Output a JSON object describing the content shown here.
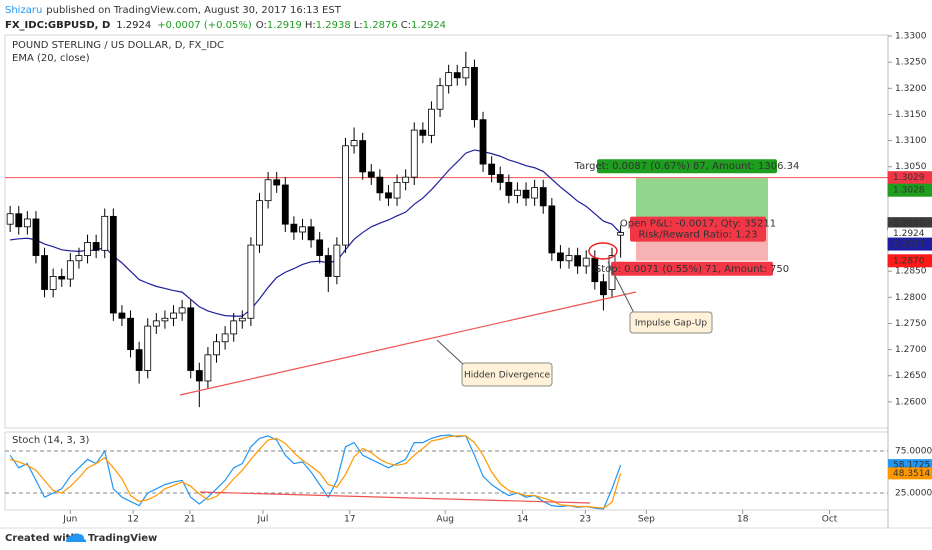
{
  "header": {
    "author": "Shizaru",
    "published": "published on TradingView.com, August 30, 2017 16:13 EST",
    "symbol": "FX_IDC:GBPUSD, D",
    "last": 1.2924,
    "change": "+0.0007 (+0.05%)",
    "ohlc": [
      {
        "label": "O:",
        "value": 1.2919
      },
      {
        "label": "H:",
        "value": 1.2938
      },
      {
        "label": "L:",
        "value": 1.2876
      },
      {
        "label": "C:",
        "value": 1.2924
      }
    ]
  },
  "footer": {
    "text": "Created with",
    "brand": "TradingView"
  },
  "chart_data": [
    {
      "type": "candlestick",
      "title": "POUND STERLING / US DOLLAR, D, FX_IDC",
      "open": [
        1.294,
        1.296,
        1.2935,
        1.295,
        1.288,
        1.2815,
        1.284,
        1.2835,
        1.287,
        1.288,
        1.2905,
        1.289,
        1.2955,
        1.277,
        1.276,
        1.27,
        1.266,
        1.2745,
        1.2755,
        1.276,
        1.277,
        1.278,
        1.266,
        1.264,
        1.269,
        1.2715,
        1.273,
        1.2755,
        1.276,
        1.29,
        1.2985,
        1.3025,
        1.3015,
        1.294,
        1.2925,
        1.2935,
        1.291,
        1.288,
        1.284,
        1.29,
        1.309,
        1.31,
        1.304,
        1.303,
        1.3,
        1.299,
        1.302,
        1.303,
        1.312,
        1.311,
        1.316,
        1.3205,
        1.323,
        1.322,
        1.324,
        1.314,
        1.3055,
        1.3035,
        1.302,
        1.2995,
        1.3005,
        1.299,
        1.301,
        1.2975,
        1.2885,
        1.287,
        1.288,
        1.286,
        1.2875,
        1.283,
        1.2815,
        1.2919
      ],
      "high": [
        1.2975,
        1.2975,
        1.2965,
        1.2965,
        1.2895,
        1.2855,
        1.2855,
        1.2885,
        1.2895,
        1.292,
        1.292,
        1.297,
        1.297,
        1.2785,
        1.2775,
        1.2715,
        1.276,
        1.277,
        1.2775,
        1.2785,
        1.2795,
        1.2795,
        1.2675,
        1.2705,
        1.273,
        1.2745,
        1.277,
        1.2775,
        1.2915,
        1.3,
        1.304,
        1.304,
        1.303,
        1.2955,
        1.295,
        1.295,
        1.2925,
        1.2895,
        1.2915,
        1.3105,
        1.3125,
        1.3115,
        1.3055,
        1.3045,
        1.3015,
        1.3035,
        1.3045,
        1.3135,
        1.3135,
        1.3175,
        1.322,
        1.3245,
        1.3245,
        1.327,
        1.3255,
        1.3155,
        1.307,
        1.305,
        1.3035,
        1.302,
        1.302,
        1.3025,
        1.3025,
        1.299,
        1.29,
        1.2895,
        1.2895,
        1.289,
        1.289,
        1.2845,
        1.2895,
        1.2938
      ],
      "low": [
        1.2925,
        1.292,
        1.292,
        1.2865,
        1.28,
        1.28,
        1.282,
        1.282,
        1.2855,
        1.2865,
        1.2875,
        1.2875,
        1.2755,
        1.2745,
        1.2685,
        1.2635,
        1.2645,
        1.273,
        1.274,
        1.2745,
        1.2755,
        1.2645,
        1.259,
        1.2625,
        1.2675,
        1.27,
        1.2715,
        1.274,
        1.2745,
        1.2885,
        1.297,
        1.3,
        1.2925,
        1.291,
        1.291,
        1.2895,
        1.2865,
        1.281,
        1.2825,
        1.2885,
        1.3075,
        1.3025,
        1.3015,
        1.2985,
        1.2975,
        1.2975,
        1.3005,
        1.3015,
        1.3095,
        1.3095,
        1.3145,
        1.319,
        1.3205,
        1.3205,
        1.3125,
        1.304,
        1.302,
        1.3005,
        1.298,
        1.298,
        1.2975,
        1.2975,
        1.296,
        1.287,
        1.2855,
        1.2855,
        1.2845,
        1.2845,
        1.2815,
        1.2775,
        1.28,
        1.2876
      ],
      "close": [
        1.296,
        1.2935,
        1.295,
        1.288,
        1.2815,
        1.284,
        1.2835,
        1.287,
        1.288,
        1.2905,
        1.289,
        1.2955,
        1.277,
        1.276,
        1.27,
        1.266,
        1.2745,
        1.2755,
        1.276,
        1.277,
        1.278,
        1.266,
        1.264,
        1.269,
        1.2715,
        1.273,
        1.2755,
        1.276,
        1.29,
        1.2985,
        1.3025,
        1.3015,
        1.294,
        1.2925,
        1.2935,
        1.291,
        1.288,
        1.284,
        1.29,
        1.309,
        1.31,
        1.304,
        1.303,
        1.3,
        1.299,
        1.302,
        1.303,
        1.312,
        1.311,
        1.316,
        1.3205,
        1.323,
        1.322,
        1.324,
        1.314,
        1.3055,
        1.3035,
        1.302,
        1.2995,
        1.3005,
        1.299,
        1.301,
        1.2975,
        1.2885,
        1.287,
        1.288,
        1.286,
        1.2875,
        1.283,
        1.2805,
        1.288,
        1.2924
      ],
      "up_color": "#ffffff",
      "down_color": "#000000",
      "wick_color": "#000000",
      "series": [
        {
          "name": "EMA (20, close)",
          "color": "#1f1f9e",
          "values": [
            1.291,
            1.2912,
            1.2913,
            1.291,
            1.2902,
            1.2897,
            1.2891,
            1.2889,
            1.2888,
            1.289,
            1.289,
            1.2896,
            1.2879,
            1.2866,
            1.285,
            1.2834,
            1.2827,
            1.2821,
            1.2817,
            1.2813,
            1.281,
            1.2796,
            1.2782,
            1.2774,
            1.2769,
            1.2765,
            1.2764,
            1.2764,
            1.2777,
            1.2797,
            1.2819,
            1.2838,
            1.2848,
            1.2855,
            1.2863,
            1.2868,
            1.2869,
            1.2866,
            1.287,
            1.2891,
            1.2911,
            1.2924,
            1.2935,
            1.2942,
            1.2948,
            1.2956,
            1.2963,
            1.2978,
            1.299,
            1.3006,
            1.3024,
            1.3043,
            1.3059,
            1.3076,
            1.3082,
            1.3079,
            1.3075,
            1.307,
            1.3063,
            1.3058,
            1.3052,
            1.3048,
            1.3041,
            1.3026,
            1.3011,
            1.2998,
            1.2984,
            1.2974,
            1.296,
            1.2946,
            1.294,
            1.2923
          ]
        }
      ],
      "xlim": [
        -0.6,
        102.1
      ],
      "xticks": [
        {
          "value": 7,
          "label": "Jun"
        },
        {
          "value": 14.3,
          "label": "12"
        },
        {
          "value": 20.9,
          "label": "21"
        },
        {
          "value": 29.4,
          "label": "Jul"
        },
        {
          "value": 39.5,
          "label": "17"
        },
        {
          "value": 50.6,
          "label": "Aug"
        },
        {
          "value": 59.6,
          "label": "14"
        },
        {
          "value": 66.9,
          "label": "23"
        },
        {
          "value": 74,
          "label": "Sep"
        },
        {
          "value": 85.2,
          "label": "18"
        },
        {
          "value": 95.3,
          "label": "Oct"
        }
      ],
      "ylim": [
        1.255,
        1.3302
      ],
      "yticks": [
        {
          "value": 1.33,
          "label": "1.3300"
        },
        {
          "value": 1.325,
          "label": "1.3250"
        },
        {
          "value": 1.32,
          "label": "1.3200"
        },
        {
          "value": 1.315,
          "label": "1.3150"
        },
        {
          "value": 1.31,
          "label": "1.3100"
        },
        {
          "value": 1.305,
          "label": "1.3050"
        },
        {
          "value": 1.285,
          "label": "1.2850"
        },
        {
          "value": 1.28,
          "label": "1.2800"
        },
        {
          "value": 1.275,
          "label": "1.2750"
        },
        {
          "value": 1.27,
          "label": "1.2700"
        },
        {
          "value": 1.265,
          "label": "1.2650"
        },
        {
          "value": 1.26,
          "label": "1.2600"
        }
      ],
      "grid": false,
      "price_labels": [
        {
          "value": 1.3029,
          "color": "#f23645"
        },
        {
          "value": 1.3028,
          "color": "#1e9e1e"
        },
        {
          "value": 1.2941,
          "color": "#3a3a3a"
        },
        {
          "value": 1.2924,
          "color": "#ffffff"
        },
        {
          "value": 1.2923,
          "color": "#1f1f9e"
        },
        {
          "value": 1.287,
          "label": "1.2870",
          "color": "#ff1a1a"
        }
      ],
      "hline_color": "#ef5350",
      "position": {
        "target_text": "Target: 0.0087 (0.67%) 87, Amount: 1306.34",
        "pnl_text": "Open P&L: -0.0017, Qty: 35211",
        "rr_text": "Risk/Reward Ratio: 1.23",
        "stop_text": "Stop: 0.0071 (0.55%) 71, Amount: 750"
      },
      "annotations": [
        "Hidden Divergence",
        "Impulse Gap-Up"
      ]
    },
    {
      "type": "line",
      "title": "Stoch (14, 3, 3)",
      "series": [
        {
          "color": "#2196f3",
          "values": [
            70,
            55,
            60,
            40,
            20,
            25,
            30,
            45,
            55,
            65,
            60,
            75,
            30,
            20,
            15,
            10,
            25,
            30,
            35,
            38,
            40,
            20,
            12,
            20,
            30,
            40,
            55,
            60,
            80,
            90,
            93,
            88,
            70,
            60,
            62,
            50,
            35,
            20,
            40,
            80,
            85,
            70,
            65,
            60,
            55,
            60,
            65,
            85,
            85,
            90,
            93,
            94,
            92,
            93,
            70,
            45,
            35,
            28,
            22,
            25,
            20,
            22,
            15,
            10,
            9,
            10,
            8,
            9,
            7,
            6,
            30,
            58.1725
          ]
        },
        {
          "color": "#ff9800",
          "values": [
            65,
            62,
            58,
            52,
            40,
            28,
            25,
            33,
            43,
            55,
            60,
            67,
            55,
            42,
            22,
            15,
            17,
            22,
            30,
            34,
            38,
            33,
            24,
            17,
            21,
            30,
            42,
            52,
            65,
            77,
            88,
            90,
            84,
            73,
            64,
            57,
            49,
            35,
            32,
            47,
            68,
            78,
            73,
            65,
            60,
            58,
            60,
            70,
            78,
            87,
            89,
            92,
            93,
            93,
            85,
            70,
            50,
            36,
            28,
            25,
            22,
            22,
            19,
            16,
            11,
            10,
            9,
            9,
            8,
            7,
            14,
            48.3514
          ]
        }
      ],
      "ylim": [
        4.8,
        97.6
      ],
      "yticks": [
        {
          "value": 75,
          "label": "75.0000"
        },
        {
          "value": 25,
          "label": "25.0000"
        }
      ]
    }
  ]
}
